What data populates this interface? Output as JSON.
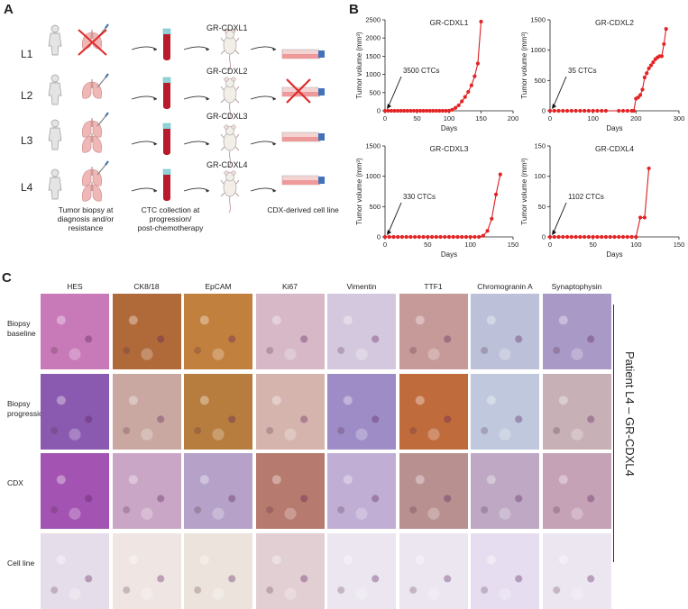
{
  "panel_a": {
    "letter": "A",
    "rows": [
      "L1",
      "L2",
      "L3",
      "L4"
    ],
    "mouse_labels": [
      "GR-CDXL1",
      "GR-CDXL2",
      "GR-CDXL3",
      "GR-CDXL4"
    ],
    "captions": {
      "biopsy": "Tumor biopsy at\ndiagnosis and/or\nresistance",
      "ctc": "CTC collection at\nprogression/\npost-chemotherapy",
      "cdx": "CDX-derived cell line"
    }
  },
  "panel_b": {
    "letter": "B"
  },
  "panel_c": {
    "letter": "C",
    "stains": [
      "HES",
      "CK8/18",
      "EpCAM",
      "Ki67",
      "Vimentin",
      "TTF1",
      "Chromogranin A",
      "Synaptophysin"
    ],
    "rows": [
      "Biopsy\nbaseline",
      "Biopsy\nprogression",
      "CDX",
      "Cell line"
    ],
    "side_label": "Patient L4 – GR-CDXL4",
    "tile_colors": [
      [
        "#c87ab8",
        "#b06a3a",
        "#c2803e",
        "#d6b8c6",
        "#d4c8de",
        "#c69a98",
        "#bcc0d8",
        "#a999c6"
      ],
      [
        "#8a5ab0",
        "#caa8a2",
        "#b77d3e",
        "#d6b4ae",
        "#9e8cc6",
        "#c06b3c",
        "#c0c8de",
        "#c7b0b6"
      ],
      [
        "#a353b2",
        "#caa6c6",
        "#b6a2c8",
        "#b77a6e",
        "#c0aed4",
        "#b89090",
        "#bea8c4",
        "#c6a2b6"
      ],
      [
        "#e6ddea",
        "#efe6e4",
        "#ece4dc",
        "#e2cfd4",
        "#ebe6f0",
        "#ece6f0",
        "#e6def0",
        "#ebe6f0"
      ]
    ]
  },
  "chart_data": [
    {
      "type": "line",
      "title": "GR-CDXL1",
      "xlabel": "Days",
      "ylabel": "Tumor volume (mm³)",
      "xlim": [
        0,
        200
      ],
      "ylim": [
        0,
        2500
      ],
      "xticks": [
        0,
        50,
        100,
        150,
        200
      ],
      "yticks": [
        0,
        500,
        1000,
        1500,
        2000,
        2500
      ],
      "annotation": "3500 CTCs",
      "x": [
        0,
        5,
        10,
        15,
        20,
        25,
        30,
        35,
        40,
        45,
        50,
        55,
        60,
        65,
        70,
        75,
        80,
        85,
        90,
        95,
        100,
        105,
        110,
        115,
        120,
        125,
        130,
        135,
        140,
        145,
        150
      ],
      "y": [
        0,
        0,
        0,
        0,
        0,
        0,
        0,
        0,
        0,
        0,
        0,
        0,
        0,
        0,
        0,
        0,
        0,
        0,
        0,
        0,
        0,
        30,
        80,
        150,
        260,
        380,
        520,
        700,
        950,
        1300,
        2450
      ]
    },
    {
      "type": "line",
      "title": "GR-CDXL2",
      "xlabel": "Days",
      "ylabel": "Tumor volume (mm³)",
      "xlim": [
        0,
        300
      ],
      "ylim": [
        0,
        1500
      ],
      "xticks": [
        0,
        100,
        200,
        300
      ],
      "yticks": [
        0,
        500,
        1000,
        1500
      ],
      "annotation": "35 CTCs",
      "x": [
        0,
        10,
        20,
        30,
        40,
        50,
        60,
        70,
        80,
        90,
        100,
        110,
        120,
        130,
        160,
        170,
        180,
        190,
        195,
        200,
        205,
        210,
        215,
        220,
        225,
        230,
        235,
        240,
        245,
        250,
        255,
        260,
        265,
        270
      ],
      "y": [
        0,
        0,
        0,
        0,
        0,
        0,
        0,
        0,
        0,
        0,
        0,
        0,
        0,
        0,
        0,
        0,
        0,
        0,
        0,
        200,
        220,
        260,
        350,
        550,
        620,
        700,
        750,
        800,
        850,
        880,
        900,
        900,
        1100,
        1350
      ]
    },
    {
      "type": "line",
      "title": "GR-CDXL3",
      "xlabel": "Days",
      "ylabel": "Tumor volume (mm³)",
      "xlim": [
        0,
        150
      ],
      "ylim": [
        0,
        1500
      ],
      "xticks": [
        0,
        50,
        100,
        150
      ],
      "yticks": [
        0,
        500,
        1000,
        1500
      ],
      "annotation": "330 CTCs",
      "x": [
        0,
        5,
        10,
        15,
        20,
        25,
        30,
        35,
        40,
        45,
        50,
        55,
        60,
        65,
        70,
        75,
        80,
        85,
        90,
        95,
        100,
        105,
        110,
        115,
        120,
        125,
        130,
        135
      ],
      "y": [
        0,
        0,
        0,
        0,
        0,
        0,
        0,
        0,
        0,
        0,
        0,
        0,
        0,
        0,
        0,
        0,
        0,
        0,
        0,
        0,
        0,
        0,
        0,
        20,
        100,
        300,
        700,
        1030
      ]
    },
    {
      "type": "line",
      "title": "GR-CDXL4",
      "xlabel": "Days",
      "ylabel": "Tumor volume (mm³)",
      "xlim": [
        0,
        150
      ],
      "ylim": [
        0,
        150
      ],
      "xticks": [
        0,
        50,
        100,
        150
      ],
      "yticks": [
        0,
        50,
        100,
        150
      ],
      "annotation": "1102 CTCs",
      "x": [
        0,
        5,
        10,
        15,
        20,
        25,
        30,
        35,
        40,
        45,
        50,
        55,
        60,
        65,
        70,
        75,
        80,
        85,
        90,
        95,
        100,
        105,
        110,
        115
      ],
      "y": [
        0,
        0,
        0,
        0,
        0,
        0,
        0,
        0,
        0,
        0,
        0,
        0,
        0,
        0,
        0,
        0,
        0,
        0,
        0,
        0,
        0,
        32,
        32,
        113
      ]
    }
  ]
}
